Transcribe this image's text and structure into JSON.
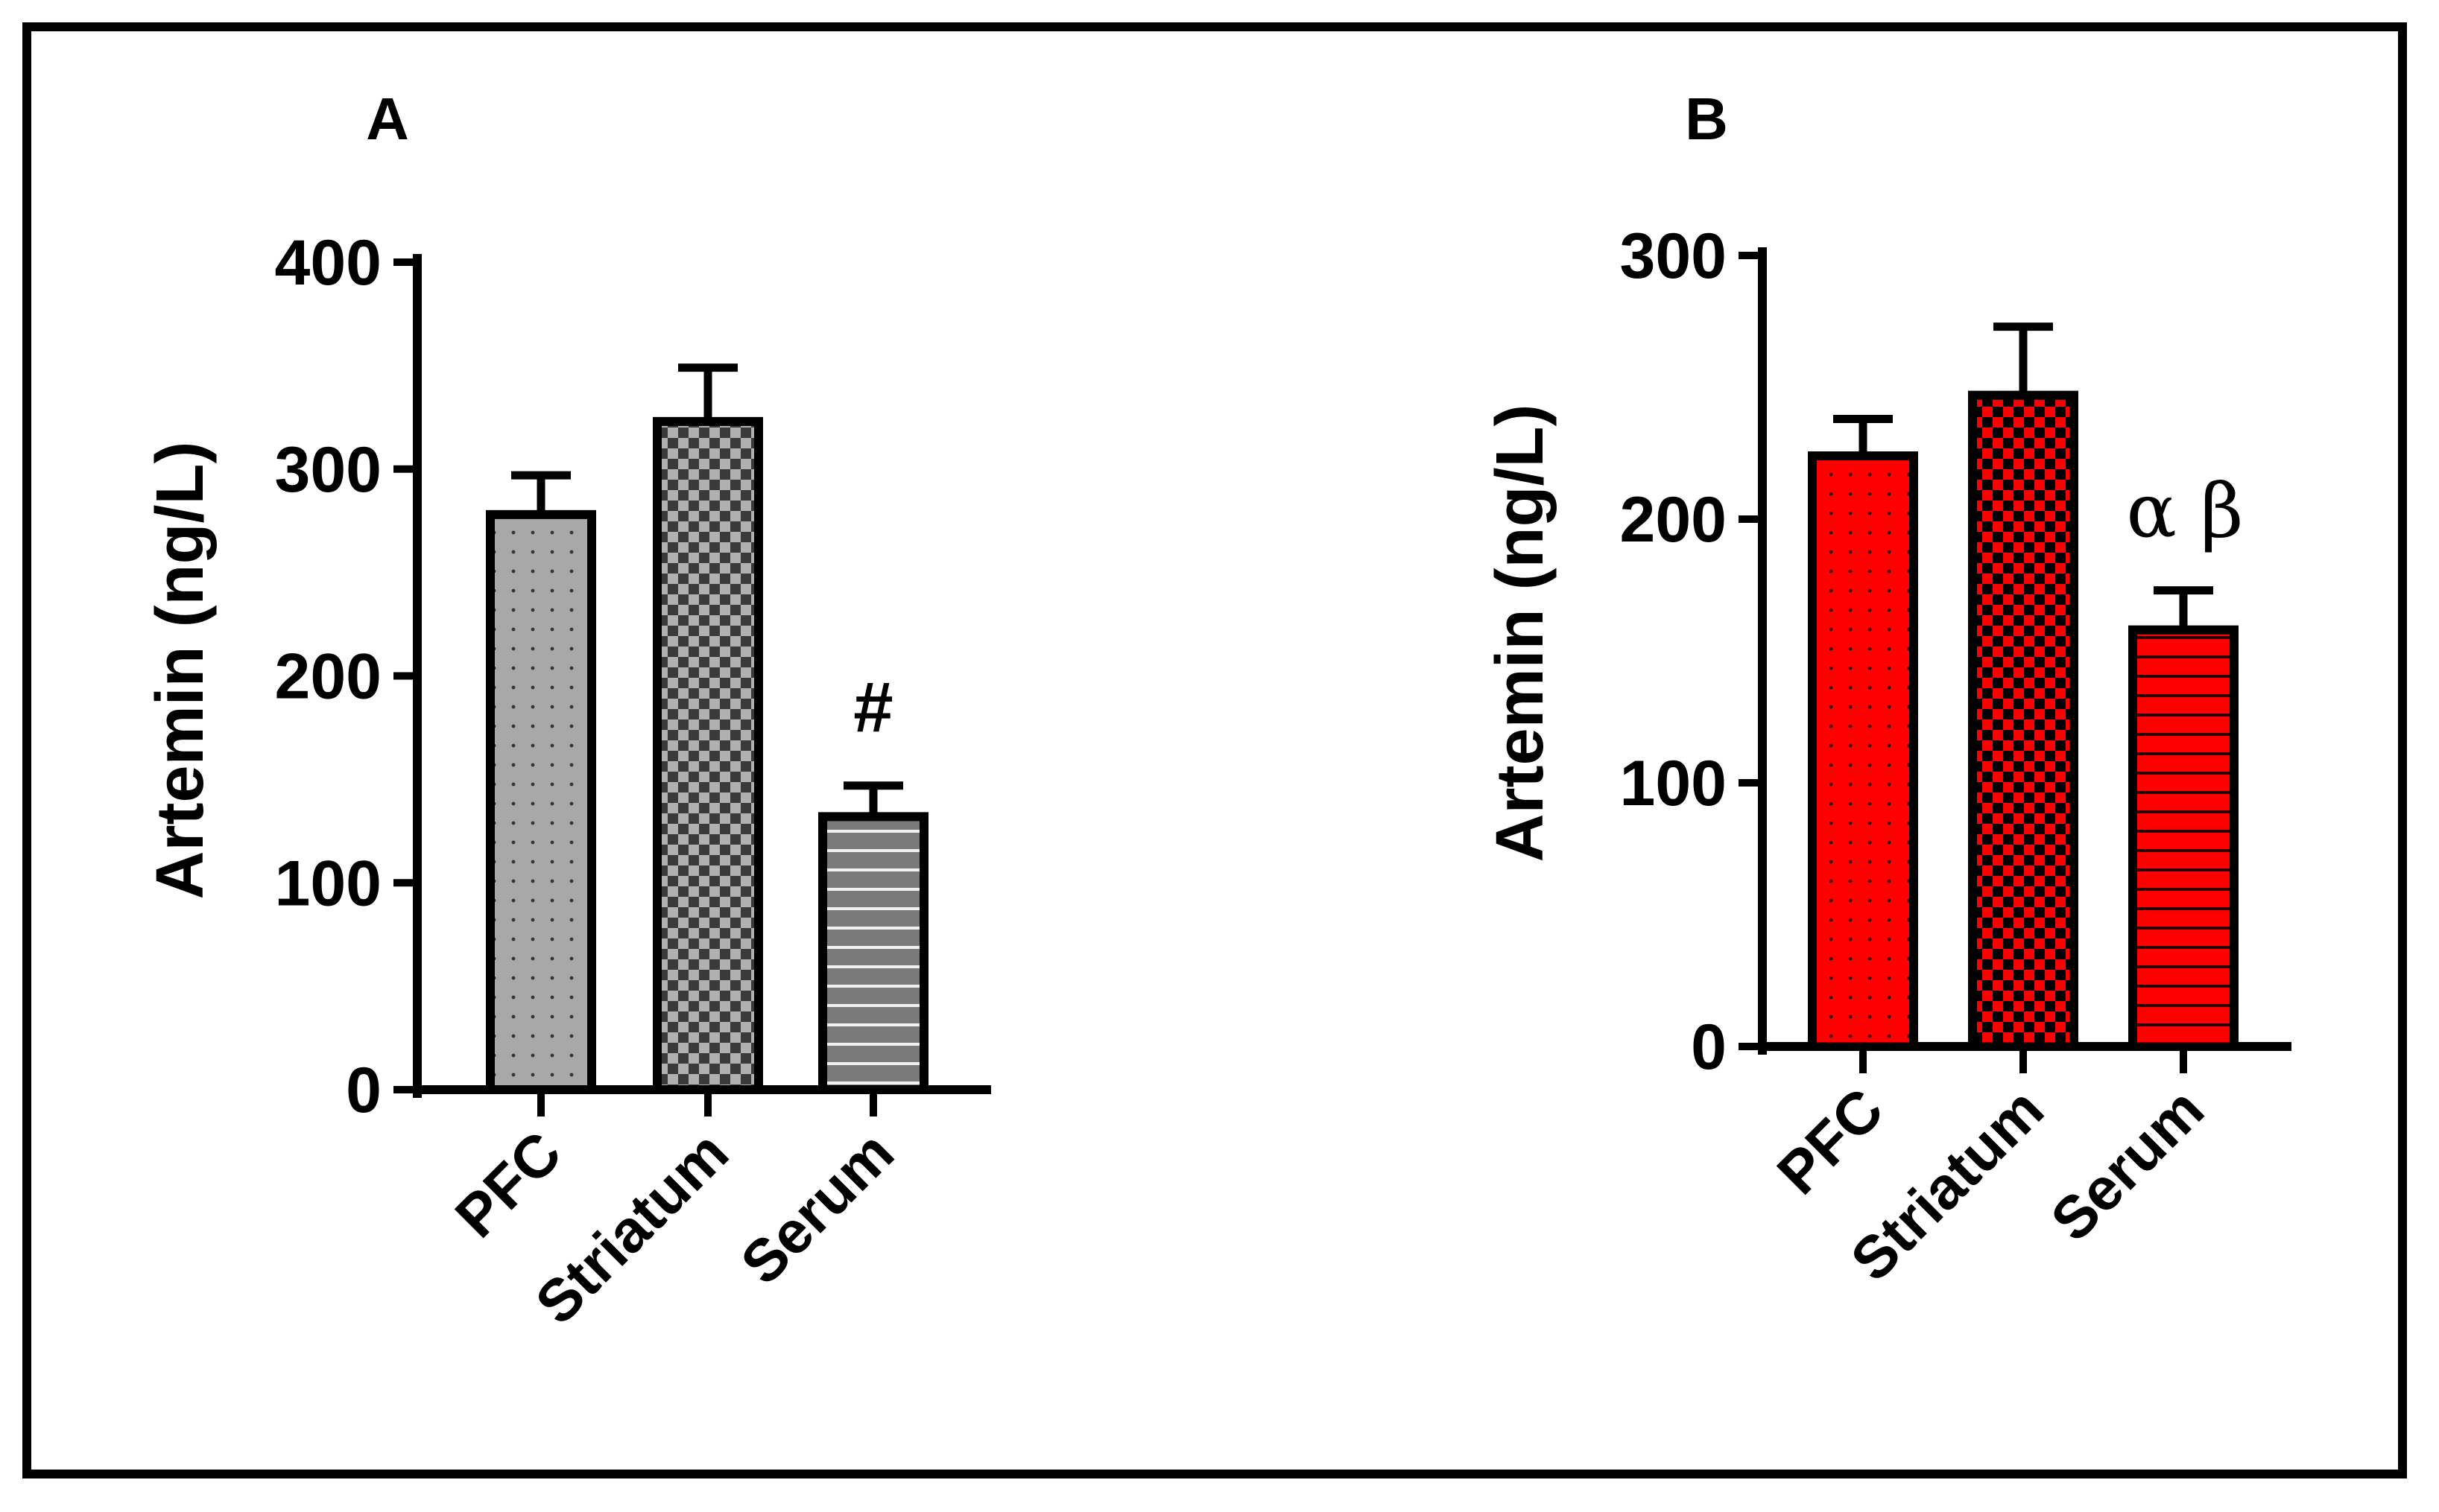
{
  "chart_data": [
    {
      "panel": "A",
      "type": "bar",
      "categories": [
        "PFC",
        "Striatum",
        "Serum"
      ],
      "values": [
        278,
        323,
        132
      ],
      "errors": [
        19,
        26,
        15
      ],
      "ylabel": "Artemin (ng/L)",
      "ylim": [
        0,
        400
      ],
      "yticks": [
        0,
        100,
        200,
        300,
        400
      ],
      "annotations": [
        "",
        "",
        "#"
      ],
      "colors": [
        "#a8a8a8",
        "#a8a8a8",
        "#7a7a7a"
      ],
      "patterns": [
        "dots",
        "checker",
        "hlines"
      ]
    },
    {
      "panel": "B",
      "type": "bar",
      "categories": [
        "PFC",
        "Striatum",
        "Serum"
      ],
      "values": [
        224,
        247,
        158
      ],
      "errors": [
        14,
        26,
        15
      ],
      "ylabel": "Artemin (ng/L)",
      "ylim": [
        0,
        300
      ],
      "yticks": [
        0,
        100,
        200,
        300
      ],
      "annotations": [
        "",
        "",
        "α β"
      ],
      "colors": [
        "#ff0000",
        "#ff0000",
        "#ff0000"
      ],
      "patterns": [
        "dots",
        "checker",
        "hlines"
      ]
    }
  ]
}
